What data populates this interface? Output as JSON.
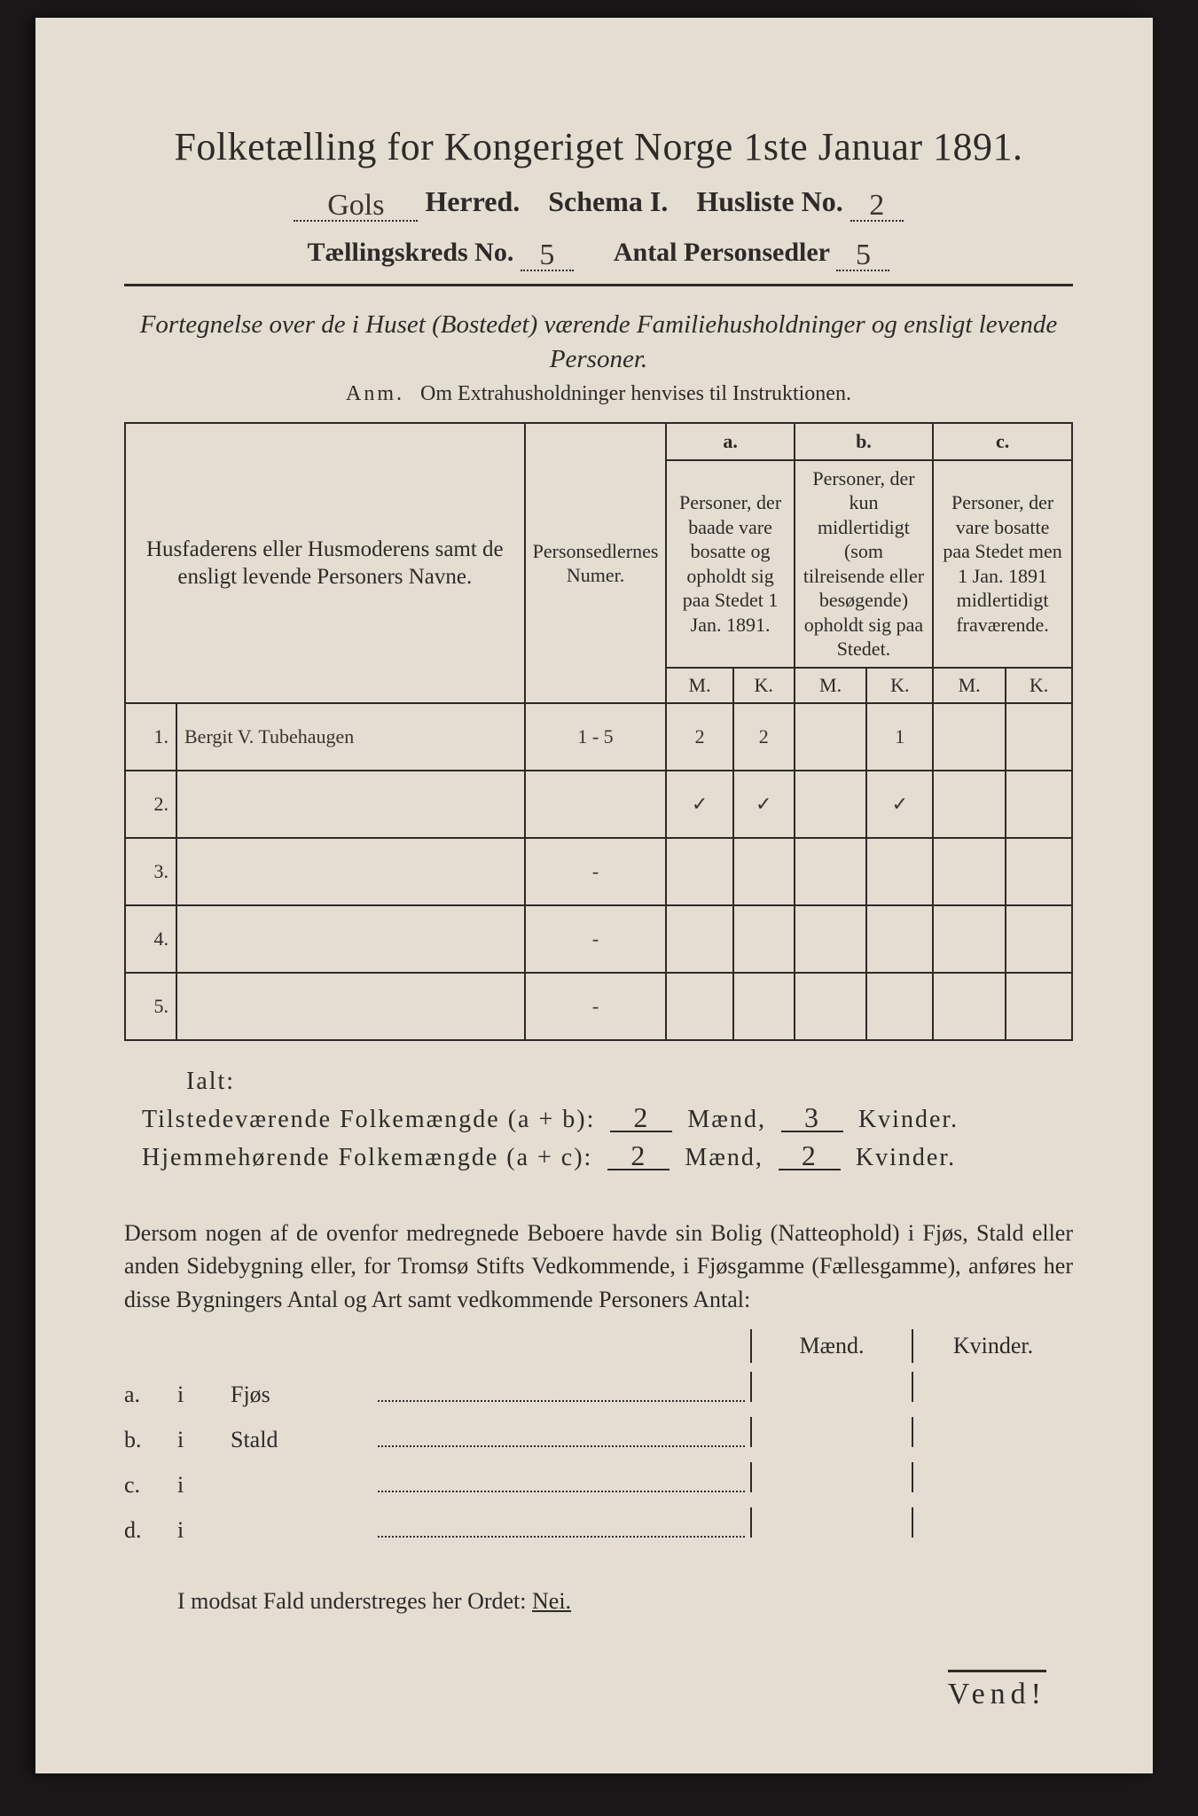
{
  "title": "Folketælling for Kongeriget Norge 1ste Januar 1891.",
  "line2": {
    "herred_hand": "Gols",
    "herred_label": "Herred.",
    "schema_label": "Schema I.",
    "husliste_label": "Husliste No.",
    "husliste_hand": "2"
  },
  "line3": {
    "kreds_label": "Tællingskreds No.",
    "kreds_hand": "5",
    "antal_label": "Antal Personsedler",
    "antal_hand": "5"
  },
  "fortegnelse": "Fortegnelse over de i Huset (Bostedet) værende Familiehusholdninger og ensligt levende Personer.",
  "anm": {
    "label": "Anm.",
    "text": "Om Extrahusholdninger henvises til Instruktionen."
  },
  "table": {
    "col1": "Husfaderens eller Husmoderens samt de ensligt levende Personers Navne.",
    "col2": "Personsedlernes Numer.",
    "a": {
      "tag": "a.",
      "text": "Personer, der baade vare bosatte og opholdt sig paa Stedet 1 Jan. 1891."
    },
    "b": {
      "tag": "b.",
      "text": "Personer, der kun midlertidigt (som tilreisende eller besøgende) opholdt sig paa Stedet."
    },
    "c": {
      "tag": "c.",
      "text": "Personer, der vare bosatte paa Stedet men 1 Jan. 1891 midlertidigt fraværende."
    },
    "M": "M.",
    "K": "K.",
    "rows": [
      {
        "n": "1.",
        "name": "Bergit V. Tubehaugen",
        "num": "1 - 5",
        "aM": "2",
        "aK": "2",
        "bM": "",
        "bK": "1",
        "cM": "",
        "cK": ""
      },
      {
        "n": "2.",
        "name": "",
        "num": "",
        "aM": "✓",
        "aK": "✓",
        "bM": "",
        "bK": "✓",
        "cM": "",
        "cK": ""
      },
      {
        "n": "3.",
        "name": "",
        "num": "-",
        "aM": "",
        "aK": "",
        "bM": "",
        "bK": "",
        "cM": "",
        "cK": ""
      },
      {
        "n": "4.",
        "name": "",
        "num": "-",
        "aM": "",
        "aK": "",
        "bM": "",
        "bK": "",
        "cM": "",
        "cK": ""
      },
      {
        "n": "5.",
        "name": "",
        "num": "-",
        "aM": "",
        "aK": "",
        "bM": "",
        "bK": "",
        "cM": "",
        "cK": ""
      }
    ]
  },
  "ialt": "Ialt:",
  "sum1": {
    "label": "Tilstedeværende Folkemængde (a + b):",
    "m": "2",
    "ml": "Mænd,",
    "k": "3",
    "kl": "Kvinder."
  },
  "sum2": {
    "label": "Hjemmehørende Folkemængde (a + c):",
    "m": "2",
    "ml": "Mænd,",
    "k": "2",
    "kl": "Kvinder."
  },
  "para": "Dersom nogen af de ovenfor medregnede Beboere havde sin Bolig (Natteophold) i Fjøs, Stald eller anden Sidebygning eller, for Tromsø Stifts Vedkommende, i Fjøsgamme (Fællesgamme), anføres her disse Bygningers Antal og Art samt vedkommende Personers Antal:",
  "mk": {
    "m": "Mænd.",
    "k": "Kvinder."
  },
  "blines": [
    {
      "a": "a.",
      "i": "i",
      "t": "Fjøs"
    },
    {
      "a": "b.",
      "i": "i",
      "t": "Stald"
    },
    {
      "a": "c.",
      "i": "i",
      "t": ""
    },
    {
      "a": "d.",
      "i": "i",
      "t": ""
    }
  ],
  "nei": {
    "text": "I modsat Fald understreges her Ordet:",
    "word": "Nei."
  },
  "vend": "Vend!"
}
